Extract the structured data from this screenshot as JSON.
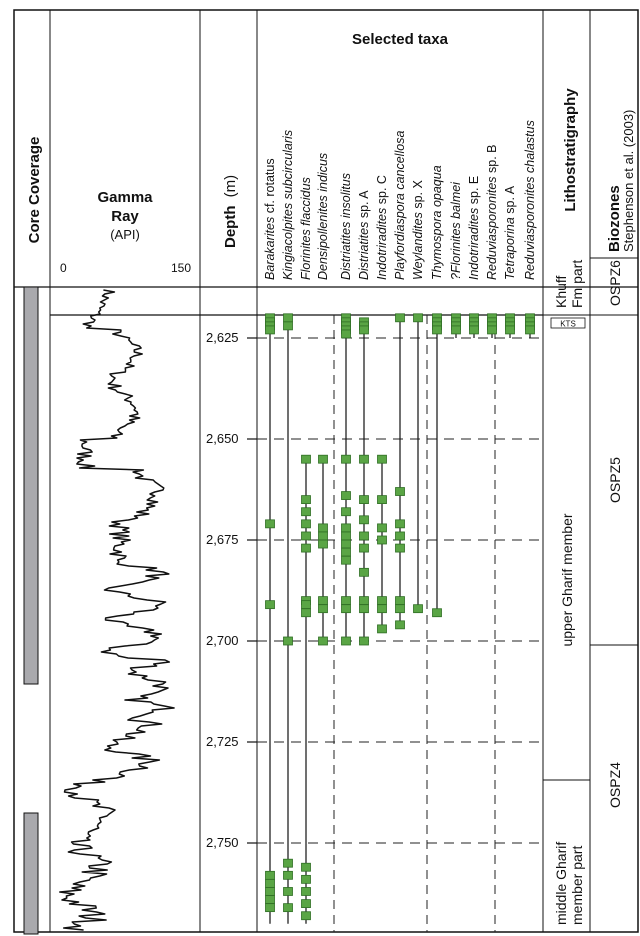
{
  "headers": {
    "core_coverage": "Core Coverage",
    "gamma_title": "Gamma",
    "gamma_title2": "Ray",
    "gamma_unit": "(API)",
    "gamma_min": "0",
    "gamma_max": "150",
    "depth_title": "Depth",
    "depth_unit": "(m)",
    "selected_taxa": "Selected taxa",
    "lithostratigraphy": "Lithostratigraphy",
    "biozones": "Biozones",
    "biozones_ref": "Stephenson et al. (2003)"
  },
  "taxa": [
    {
      "italic": "Barakarites",
      "rest": " cf. rotatus"
    },
    {
      "italic": "Kingiacolpites subcircularis",
      "rest": ""
    },
    {
      "italic": "Florinites flaccidus",
      "rest": ""
    },
    {
      "italic": "Densipollenites indicus",
      "rest": ""
    },
    {
      "italic": "Distriatites insolitus",
      "rest": ""
    },
    {
      "italic": "Distriatites",
      "rest": " sp. A"
    },
    {
      "italic": "Indotriradites",
      "rest": " sp. C"
    },
    {
      "italic": "Playfordiaspora cancellosa",
      "rest": ""
    },
    {
      "italic": "Weylandites",
      "rest": " sp. X"
    },
    {
      "italic": "Thymospora opaqua",
      "rest": ""
    },
    {
      "italic": "?Florinites balmei",
      "rest": ""
    },
    {
      "italic": "Indotriradites",
      "rest": " sp. E"
    },
    {
      "italic": "Reduviasporonites",
      "rest": " sp. B"
    },
    {
      "italic": "Tetraporina",
      "rest": " sp. A"
    },
    {
      "italic": "Reduviasporonites chalastus",
      "rest": ""
    }
  ],
  "depth_ticks": [
    "2,625",
    "2,650",
    "2,675",
    "2,700",
    "2,725",
    "2,750"
  ],
  "lithostratigraphy": {
    "khuff_line1": "Khuff",
    "khuff_line2": "Fm part",
    "kts": "KTS",
    "upper": "upper Gharif member",
    "middle_line1": "middle Gharif",
    "middle_line2": "member part"
  },
  "biozones": [
    "OSPZ6",
    "OSPZ5",
    "OSPZ4"
  ],
  "colors": {
    "sample": "#5aa545",
    "sample_border": "#2f6e24",
    "core_bar": "#a9a9ad"
  }
}
